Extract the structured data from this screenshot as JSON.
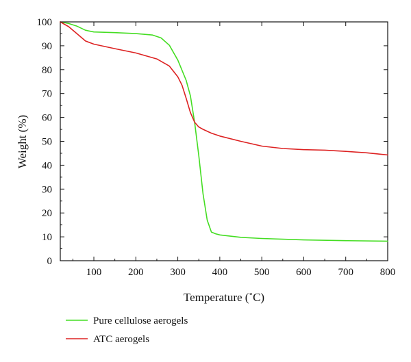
{
  "chart_data": {
    "type": "line",
    "xlabel": "Temperature (˚C)",
    "ylabel": "Weight (%)",
    "xlim": [
      20,
      800
    ],
    "ylim": [
      0,
      100
    ],
    "x_ticks": [
      100,
      200,
      300,
      400,
      500,
      600,
      700,
      800
    ],
    "y_ticks": [
      0,
      10,
      20,
      30,
      40,
      50,
      60,
      70,
      80,
      90,
      100
    ],
    "grid": false,
    "legend_position": "bottom-left, below plot",
    "series": [
      {
        "name": "Pure cellulose aerogels",
        "color": "#44dd22",
        "x": [
          20,
          40,
          60,
          80,
          100,
          150,
          200,
          240,
          260,
          280,
          300,
          320,
          330,
          340,
          350,
          360,
          370,
          380,
          390,
          400,
          450,
          500,
          600,
          700,
          800
        ],
        "y": [
          100,
          99.3,
          98.2,
          96.5,
          95.8,
          95.5,
          95.1,
          94.5,
          93.3,
          90.2,
          84,
          75.5,
          69,
          58,
          44,
          28,
          17,
          12,
          11.3,
          10.8,
          9.8,
          9.3,
          8.7,
          8.4,
          8.2
        ]
      },
      {
        "name": "ATC aerogels",
        "color": "#dd2222",
        "x": [
          20,
          40,
          60,
          80,
          100,
          150,
          200,
          250,
          280,
          300,
          310,
          320,
          330,
          340,
          350,
          360,
          380,
          400,
          450,
          500,
          550,
          600,
          650,
          700,
          750,
          800
        ],
        "y": [
          100,
          98,
          95,
          92,
          90.7,
          88.8,
          87,
          84.5,
          81.5,
          77,
          73.5,
          68,
          62,
          58,
          56,
          55,
          53.4,
          52.2,
          50,
          48,
          47,
          46.5,
          46.3,
          45.8,
          45.2,
          44.3
        ]
      }
    ]
  }
}
